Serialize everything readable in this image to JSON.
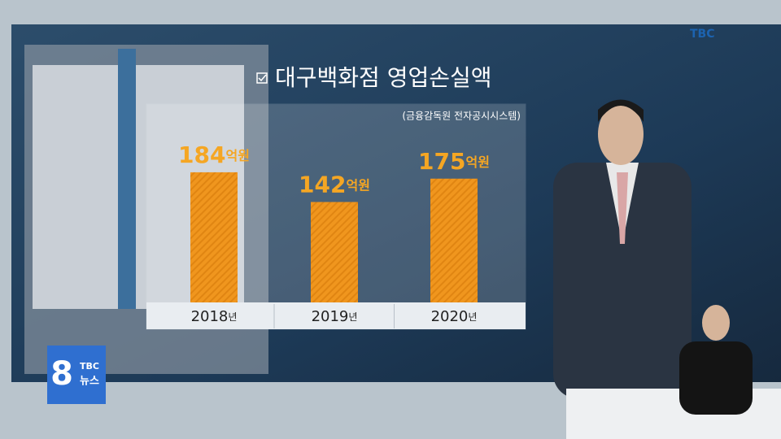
{
  "broadcast": {
    "logo": "TBC",
    "channel": "8",
    "brand": "TBC",
    "program": "뉴스"
  },
  "chart_data": {
    "type": "bar",
    "title": "대구백화점 영업손실액",
    "subtitle": "(금융감독원 전자공시시스템)",
    "categories": [
      "2018년",
      "2019년",
      "2020년"
    ],
    "values": [
      184,
      142,
      175
    ],
    "value_labels": [
      "184억원",
      "142억원",
      "175억원"
    ],
    "color": "#f0961e"
  }
}
